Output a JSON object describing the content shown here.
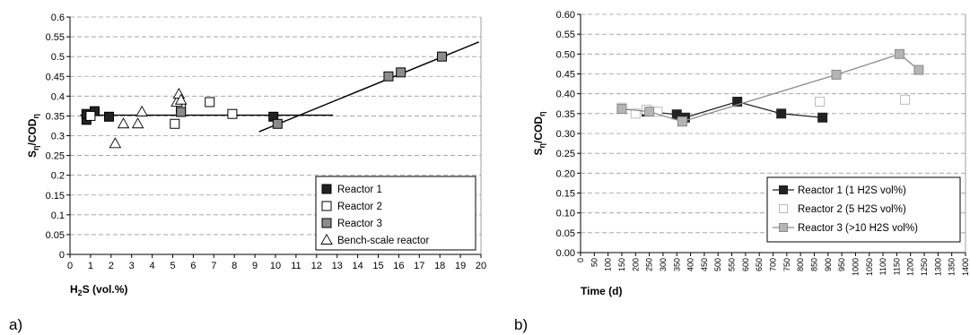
{
  "chart_data": [
    {
      "type": "scatter",
      "panel_label": "a)",
      "xlabel": "H2S (vol.%)",
      "ylabel": "Sη/CODη",
      "xlim": [
        0,
        20
      ],
      "ylim": [
        0,
        0.6
      ],
      "x_ticks": [
        0,
        1,
        2,
        3,
        4,
        5,
        6,
        7,
        8,
        9,
        10,
        11,
        12,
        13,
        14,
        15,
        16,
        17,
        18,
        19,
        20
      ],
      "y_ticks": [
        0,
        0.05,
        0.1,
        0.15,
        0.2,
        0.25,
        0.3,
        0.35,
        0.4,
        0.45,
        0.5,
        0.55,
        0.6
      ],
      "y_tick_labels": [
        "0",
        "0.05",
        "0.1",
        "0.15",
        "0.2",
        "0.25",
        "0.3",
        "0.35",
        "0.4",
        "0.45",
        "0.5",
        "0.55",
        "0.6"
      ],
      "grid": "horizontal dashed",
      "legend_position": "bottom-right",
      "series": [
        {
          "name": "Reactor 1",
          "marker": "square",
          "fill": "#222222",
          "points": [
            [
              0.8,
              0.34
            ],
            [
              0.8,
              0.355
            ],
            [
              1.2,
              0.362
            ],
            [
              1.9,
              0.348
            ],
            [
              9.9,
              0.348
            ]
          ]
        },
        {
          "name": "Reactor 2",
          "marker": "square",
          "fill": "#ffffff",
          "points": [
            [
              1.0,
              0.35
            ],
            [
              5.1,
              0.33
            ],
            [
              5.4,
              0.37
            ],
            [
              6.8,
              0.385
            ],
            [
              7.9,
              0.355
            ]
          ]
        },
        {
          "name": "Reactor 3",
          "marker": "square",
          "fill": "#8c8c8c",
          "points": [
            [
              5.4,
              0.36
            ],
            [
              10.1,
              0.33
            ],
            [
              15.5,
              0.45
            ],
            [
              16.1,
              0.46
            ],
            [
              18.1,
              0.5
            ]
          ]
        },
        {
          "name": "Bench-scale reactor",
          "marker": "triangle",
          "fill": "#ffffff",
          "points": [
            [
              2.2,
              0.28
            ],
            [
              2.6,
              0.33
            ],
            [
              3.3,
              0.33
            ],
            [
              3.5,
              0.36
            ],
            [
              5.2,
              0.385
            ],
            [
              5.3,
              0.405
            ],
            [
              5.4,
              0.39
            ]
          ]
        }
      ],
      "trend_lines": [
        {
          "from": [
            0.5,
            0.352
          ],
          "to": [
            12.8,
            0.352
          ]
        },
        {
          "from": [
            9.2,
            0.31
          ],
          "to": [
            19.9,
            0.537
          ]
        }
      ]
    },
    {
      "type": "line",
      "panel_label": "b)",
      "xlabel": "Time (d)",
      "ylabel": "Sη/CODη",
      "xlim": [
        0,
        1400
      ],
      "ylim": [
        0,
        0.6
      ],
      "x_ticks": [
        0,
        50,
        100,
        150,
        200,
        250,
        300,
        350,
        400,
        450,
        500,
        550,
        600,
        650,
        700,
        750,
        800,
        850,
        900,
        950,
        1000,
        1050,
        1100,
        1150,
        1200,
        1250,
        1300,
        1350,
        1400
      ],
      "y_ticks": [
        0,
        0.05,
        0.1,
        0.15,
        0.2,
        0.25,
        0.3,
        0.35,
        0.4,
        0.45,
        0.5,
        0.55,
        0.6
      ],
      "y_tick_labels": [
        "0.00",
        "0.05",
        "0.10",
        "0.15",
        "0.20",
        "0.25",
        "0.30",
        "0.35",
        "0.40",
        "0.45",
        "0.50",
        "0.55",
        "0.60"
      ],
      "grid": "horizontal dashed",
      "legend_position": "bottom-right",
      "series": [
        {
          "name": "Reactor 1 (1 H2S vol%)",
          "marker": "square",
          "fill": "#222222",
          "stroke": "#222222",
          "line": true,
          "points": [
            [
              150,
              0.362
            ],
            [
              240,
              0.355
            ],
            [
              350,
              0.348
            ],
            [
              380,
              0.34
            ],
            [
              570,
              0.38
            ],
            [
              730,
              0.35
            ],
            [
              880,
              0.34
            ]
          ]
        },
        {
          "name": "Reactor 2 (5 H2S vol%)",
          "marker": "square",
          "fill": "#ffffff",
          "stroke": "#bbbbbb",
          "line": false,
          "points": [
            [
              150,
              0.365
            ],
            [
              200,
              0.35
            ],
            [
              240,
              0.36
            ],
            [
              280,
              0.355
            ],
            [
              370,
              0.33
            ],
            [
              870,
              0.38
            ],
            [
              1180,
              0.385
            ]
          ]
        },
        {
          "name": "Reactor 3 (>10 H2S vol%)",
          "marker": "square",
          "fill": "#b4b4b4",
          "stroke": "#8c8c8c",
          "line": true,
          "points": [
            [
              150,
              0.362
            ],
            [
              250,
              0.355
            ],
            [
              370,
              0.33
            ],
            [
              930,
              0.448
            ],
            [
              1160,
              0.5
            ],
            [
              1230,
              0.46
            ]
          ]
        }
      ]
    }
  ]
}
